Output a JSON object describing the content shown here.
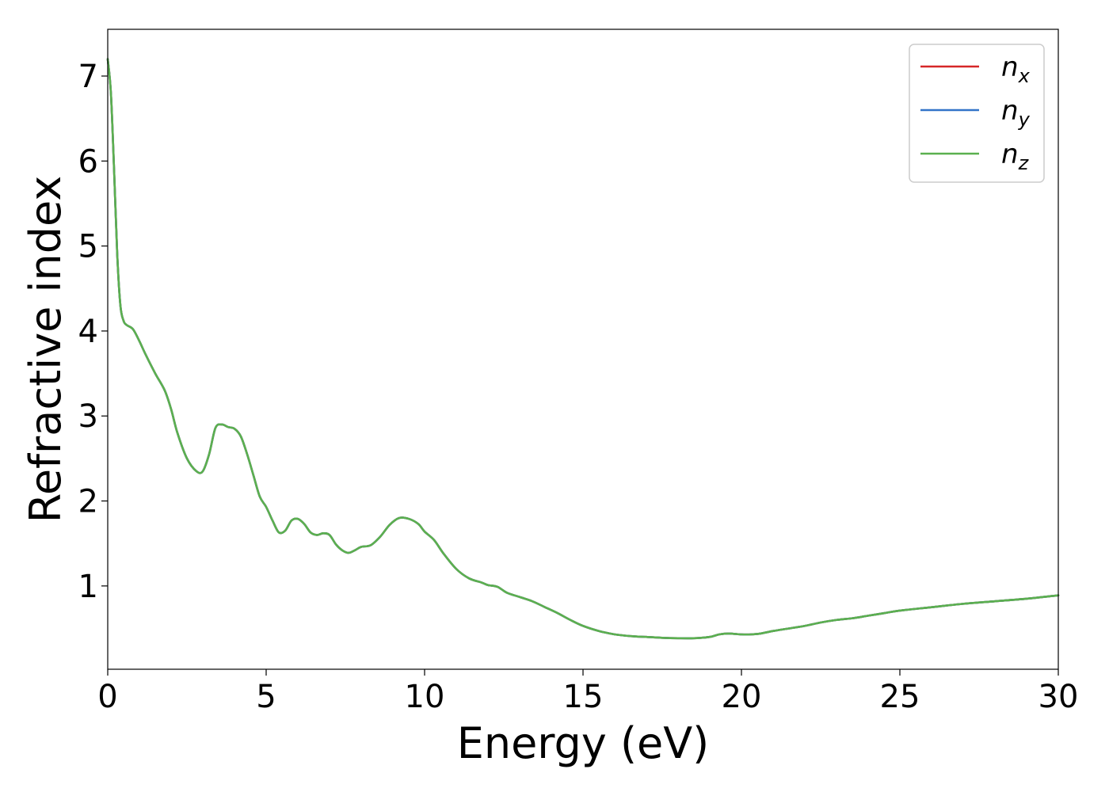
{
  "chart_data": {
    "type": "line",
    "xlabel": "Energy (eV)",
    "ylabel": "Refractive index",
    "xlim": [
      0,
      30
    ],
    "ylim": [
      0.02,
      7.55
    ],
    "xticks": [
      0,
      5,
      10,
      15,
      20,
      25,
      30
    ],
    "yticks": [
      1,
      2,
      3,
      4,
      5,
      6,
      7
    ],
    "grid": false,
    "legend": "top-right",
    "x": [
      0,
      0.1,
      0.2,
      0.3,
      0.4,
      0.5,
      0.6,
      0.8,
      1.0,
      1.2,
      1.5,
      1.8,
      2.0,
      2.2,
      2.5,
      2.8,
      3.0,
      3.2,
      3.4,
      3.6,
      3.8,
      4.0,
      4.2,
      4.4,
      4.6,
      4.8,
      5.0,
      5.2,
      5.4,
      5.6,
      5.8,
      6.0,
      6.2,
      6.4,
      6.6,
      6.8,
      7.0,
      7.2,
      7.4,
      7.6,
      7.8,
      8.0,
      8.3,
      8.6,
      8.9,
      9.2,
      9.5,
      9.8,
      10.0,
      10.3,
      10.6,
      11.0,
      11.4,
      11.8,
      12.0,
      12.3,
      12.6,
      13.0,
      13.4,
      13.8,
      14.2,
      14.6,
      15.0,
      15.5,
      16.0,
      16.5,
      17.0,
      17.5,
      18.0,
      18.5,
      19.0,
      19.3,
      19.6,
      20.0,
      20.3,
      20.6,
      21.0,
      21.5,
      22.0,
      22.5,
      23.0,
      23.5,
      24.0,
      24.5,
      25.0,
      26.0,
      27.0,
      28.0,
      29.0,
      30.0
    ],
    "series": [
      {
        "name": "n_x",
        "label_base": "n",
        "label_sub": "x",
        "color": "#d62728",
        "values": [
          7.2,
          6.8,
          5.9,
          4.9,
          4.3,
          4.12,
          4.07,
          4.02,
          3.88,
          3.72,
          3.5,
          3.3,
          3.08,
          2.8,
          2.5,
          2.35,
          2.35,
          2.55,
          2.86,
          2.9,
          2.87,
          2.85,
          2.76,
          2.55,
          2.3,
          2.05,
          1.93,
          1.77,
          1.63,
          1.65,
          1.77,
          1.79,
          1.73,
          1.63,
          1.6,
          1.62,
          1.6,
          1.49,
          1.42,
          1.39,
          1.42,
          1.46,
          1.48,
          1.58,
          1.72,
          1.8,
          1.79,
          1.73,
          1.64,
          1.54,
          1.38,
          1.2,
          1.09,
          1.04,
          1.01,
          0.99,
          0.92,
          0.87,
          0.82,
          0.75,
          0.68,
          0.6,
          0.53,
          0.47,
          0.43,
          0.41,
          0.4,
          0.39,
          0.385,
          0.385,
          0.4,
          0.43,
          0.44,
          0.43,
          0.43,
          0.44,
          0.47,
          0.5,
          0.53,
          0.57,
          0.6,
          0.62,
          0.65,
          0.68,
          0.71,
          0.75,
          0.79,
          0.82,
          0.85,
          0.89
        ]
      },
      {
        "name": "n_y",
        "label_base": "n",
        "label_sub": "y",
        "color": "#3274c8",
        "values": [
          7.2,
          6.8,
          5.9,
          4.9,
          4.3,
          4.12,
          4.07,
          4.02,
          3.88,
          3.72,
          3.5,
          3.3,
          3.08,
          2.8,
          2.5,
          2.35,
          2.35,
          2.55,
          2.86,
          2.9,
          2.87,
          2.85,
          2.76,
          2.55,
          2.3,
          2.05,
          1.93,
          1.77,
          1.63,
          1.65,
          1.77,
          1.79,
          1.73,
          1.63,
          1.6,
          1.62,
          1.6,
          1.49,
          1.42,
          1.39,
          1.42,
          1.46,
          1.48,
          1.58,
          1.72,
          1.8,
          1.79,
          1.73,
          1.64,
          1.54,
          1.38,
          1.2,
          1.09,
          1.04,
          1.01,
          0.99,
          0.92,
          0.87,
          0.82,
          0.75,
          0.68,
          0.6,
          0.53,
          0.47,
          0.43,
          0.41,
          0.4,
          0.39,
          0.385,
          0.385,
          0.4,
          0.43,
          0.44,
          0.43,
          0.43,
          0.44,
          0.47,
          0.5,
          0.53,
          0.57,
          0.6,
          0.62,
          0.65,
          0.68,
          0.71,
          0.75,
          0.79,
          0.82,
          0.85,
          0.89
        ]
      },
      {
        "name": "n_z",
        "label_base": "n",
        "label_sub": "z",
        "color": "#5bb04f",
        "values": [
          7.2,
          6.8,
          5.9,
          4.9,
          4.3,
          4.12,
          4.07,
          4.02,
          3.88,
          3.72,
          3.5,
          3.3,
          3.08,
          2.8,
          2.5,
          2.35,
          2.35,
          2.55,
          2.86,
          2.9,
          2.87,
          2.85,
          2.76,
          2.55,
          2.3,
          2.05,
          1.93,
          1.77,
          1.63,
          1.65,
          1.77,
          1.79,
          1.73,
          1.63,
          1.6,
          1.62,
          1.6,
          1.49,
          1.42,
          1.39,
          1.42,
          1.46,
          1.48,
          1.58,
          1.72,
          1.8,
          1.79,
          1.73,
          1.64,
          1.54,
          1.38,
          1.2,
          1.09,
          1.04,
          1.01,
          0.99,
          0.92,
          0.87,
          0.82,
          0.75,
          0.68,
          0.6,
          0.53,
          0.47,
          0.43,
          0.41,
          0.4,
          0.39,
          0.385,
          0.385,
          0.4,
          0.43,
          0.44,
          0.43,
          0.43,
          0.44,
          0.47,
          0.5,
          0.53,
          0.57,
          0.6,
          0.62,
          0.65,
          0.68,
          0.71,
          0.75,
          0.79,
          0.82,
          0.85,
          0.89
        ]
      }
    ]
  }
}
